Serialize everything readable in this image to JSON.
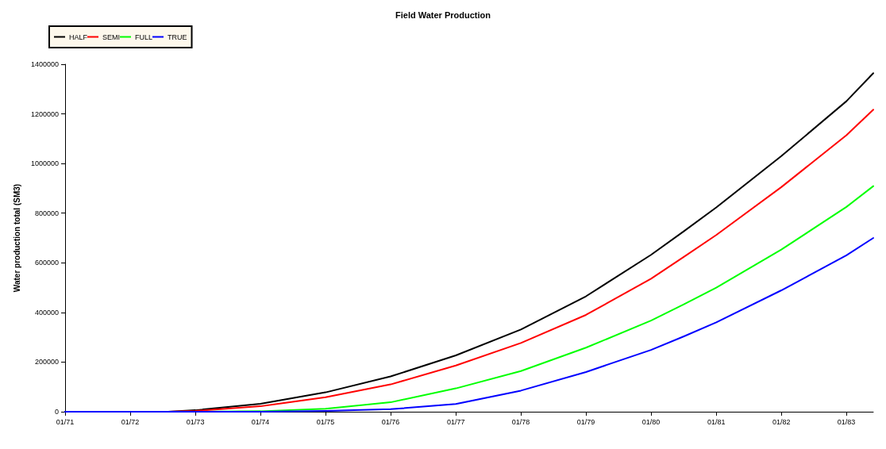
{
  "chart_data": {
    "type": "line",
    "title": "Field Water Production",
    "ylabel": "Water production total (SM3)",
    "x": [
      "1971-01",
      "1972-01",
      "1972-08",
      "1973-01",
      "1974-01",
      "1975-01",
      "1976-01",
      "1977-01",
      "1978-01",
      "1979-01",
      "1980-01",
      "1980-07",
      "1981-01",
      "1982-01",
      "1983-01",
      "1983-06"
    ],
    "series": [
      {
        "name": "HALF",
        "color": "#000000",
        "values": [
          0,
          0,
          0,
          6000,
          32000,
          78000,
          142000,
          227000,
          331000,
          465000,
          632000,
          726000,
          823000,
          1030000,
          1251000,
          1364000
        ]
      },
      {
        "name": "SEMI",
        "color": "#ff0000",
        "values": [
          null,
          null,
          0,
          3000,
          22000,
          58000,
          110000,
          186000,
          277000,
          390000,
          536000,
          623000,
          712000,
          905000,
          1114000,
          1217000
        ]
      },
      {
        "name": "FULL",
        "color": "#00ff00",
        "values": [
          null,
          null,
          null,
          0,
          2000,
          12000,
          38000,
          94000,
          164000,
          258000,
          367000,
          432000,
          500000,
          653000,
          825000,
          909000
        ]
      },
      {
        "name": "TRUE",
        "color": "#0000ff",
        "values": [
          0,
          0,
          0,
          0,
          0,
          3000,
          10000,
          31000,
          85000,
          160000,
          249000,
          303000,
          360000,
          489000,
          630000,
          700000
        ]
      }
    ],
    "xlim": [
      "1971-01",
      "1983-06"
    ],
    "xticks": [
      {
        "value": "1971-01",
        "label": "01/71"
      },
      {
        "value": "1972-01",
        "label": "01/72"
      },
      {
        "value": "1973-01",
        "label": "01/73"
      },
      {
        "value": "1974-01",
        "label": "01/74"
      },
      {
        "value": "1975-01",
        "label": "01/75"
      },
      {
        "value": "1976-01",
        "label": "01/76"
      },
      {
        "value": "1977-01",
        "label": "01/77"
      },
      {
        "value": "1978-01",
        "label": "01/78"
      },
      {
        "value": "1979-01",
        "label": "01/79"
      },
      {
        "value": "1980-01",
        "label": "01/80"
      },
      {
        "value": "1981-01",
        "label": "01/81"
      },
      {
        "value": "1982-01",
        "label": "01/82"
      },
      {
        "value": "1983-01",
        "label": "01/83"
      }
    ],
    "ylim": [
      0,
      1400000
    ],
    "yticks": [
      0,
      200000,
      400000,
      600000,
      800000,
      1000000,
      1200000,
      1400000
    ],
    "grid": false,
    "legend": "top",
    "marker": "none",
    "line_style": "solid"
  }
}
